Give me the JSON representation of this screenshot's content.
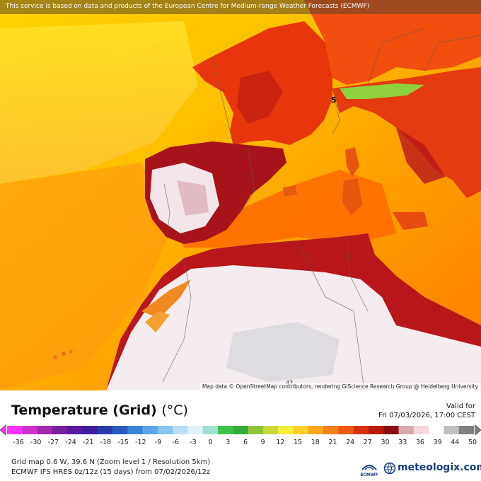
{
  "banner": {
    "text": "This service is based on data and products of the European Centre for Medium-range Weather Forecasts (ECMWF)"
  },
  "map": {
    "attribution": "Map data © OpenStreetMap contributors, rendering GIScience Research Group @ Heidelberg University",
    "markers": [
      {
        "label": "5"
      },
      {
        "label": "47"
      }
    ]
  },
  "header": {
    "title": "Temperature (Grid)",
    "unit": "(°C)",
    "valid_label": "Valid for",
    "valid_time": "Fri 07/03/2026, 17:00 CEST"
  },
  "scale": {
    "labels": [
      "-36",
      "-30",
      "-27",
      "-24",
      "-21",
      "-18",
      "-15",
      "-12",
      "-9",
      "-6",
      "-3",
      "0",
      "3",
      "6",
      "9",
      "12",
      "15",
      "18",
      "21",
      "24",
      "27",
      "30",
      "33",
      "36",
      "39",
      "44",
      "50"
    ],
    "colors": [
      "#ff33ff",
      "#d02fd0",
      "#a02aa8",
      "#7a1f9c",
      "#5a1aa0",
      "#3d1f9e",
      "#2b3aa8",
      "#2a5cc0",
      "#3a82d8",
      "#5aa6e6",
      "#86c6ee",
      "#b8dff2",
      "#dff2f7",
      "#9fe0d0",
      "#3fc04a",
      "#36a83c",
      "#8fc43a",
      "#c8d83a",
      "#f2ee3a",
      "#fbd02a",
      "#f9a81e",
      "#f4801a",
      "#ec5a14",
      "#d8300e",
      "#b81a10",
      "#8a1010",
      "#d8a8ae",
      "#f2d8dc",
      "#ffffff",
      "#bfbfbf",
      "#808080"
    ]
  },
  "footer": {
    "grid_info": "Grid map 0.6 W, 39.6 N (Zoom level 1 / Resolution 5km)",
    "model_info": "ECMWF IFS HRES 0z/12z (15 days) from 07/02/2026/12z",
    "ecmwf_logo_text": "ECMWF",
    "brand": "meteologix.com"
  },
  "colors": {
    "sea_cool": "#ffe000",
    "sea_warm": "#ff8a00",
    "land_hot": "#e8360c",
    "land_very_hot": "#a8121a",
    "land_extreme": "#f2e6ea"
  }
}
